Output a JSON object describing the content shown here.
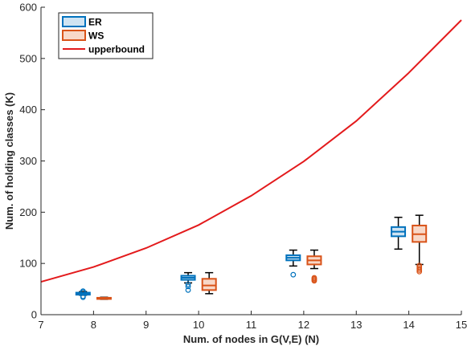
{
  "chart_data": {
    "type": "boxplot+line",
    "xlabel": "Num. of nodes in G(V,E) (N)",
    "ylabel": "Num. of holding classes (K)",
    "xlim": [
      7,
      15
    ],
    "ylim": [
      0,
      600
    ],
    "xticks": [
      7,
      8,
      9,
      10,
      11,
      12,
      13,
      14,
      15
    ],
    "yticks": [
      0,
      100,
      200,
      300,
      400,
      500,
      600
    ],
    "grid": false,
    "legend": {
      "placement": "top-left",
      "entries": [
        {
          "label": "ER",
          "color": "#0072BD",
          "fill": "#cfe3f2",
          "kind": "box"
        },
        {
          "label": "WS",
          "color": "#D95319",
          "fill": "#f8d8c8",
          "kind": "box"
        },
        {
          "label": "upperbound",
          "color": "#e31a1c",
          "kind": "line"
        }
      ]
    },
    "box_series": [
      {
        "name": "ER",
        "color": "#0072BD",
        "fill": "#cfe3f2",
        "boxes": [
          {
            "x": 7.8,
            "q1": 39,
            "median": 41,
            "q3": 43,
            "whislo": 38,
            "whishi": 45,
            "outliers": [
              34,
              36,
              44,
              46
            ]
          },
          {
            "x": 9.8,
            "q1": 68,
            "median": 72,
            "q3": 76,
            "whislo": 62,
            "whishi": 82,
            "outliers": [
              48,
              55,
              59
            ]
          },
          {
            "x": 11.8,
            "q1": 106,
            "median": 111,
            "q3": 116,
            "whislo": 95,
            "whishi": 126,
            "outliers": [
              78
            ]
          },
          {
            "x": 13.8,
            "q1": 153,
            "median": 162,
            "q3": 171,
            "whislo": 128,
            "whishi": 190,
            "outliers": []
          }
        ]
      },
      {
        "name": "WS",
        "color": "#D95319",
        "fill": "#f8d8c8",
        "boxes": [
          {
            "x": 8.2,
            "q1": 31,
            "median": 32,
            "q3": 33,
            "whislo": 30,
            "whishi": 34,
            "outliers": []
          },
          {
            "x": 10.2,
            "q1": 48,
            "median": 57,
            "q3": 70,
            "whislo": 41,
            "whishi": 82,
            "outliers": []
          },
          {
            "x": 12.2,
            "q1": 98,
            "median": 106,
            "q3": 114,
            "whislo": 90,
            "whishi": 126,
            "outliers": [
              66,
              68,
              70,
              72
            ]
          },
          {
            "x": 14.2,
            "q1": 142,
            "median": 157,
            "q3": 174,
            "whislo": 98,
            "whishi": 194,
            "outliers": [
              84,
              87,
              90,
              93,
              96
            ]
          }
        ]
      }
    ],
    "line_series": [
      {
        "name": "upperbound",
        "color": "#e31a1c",
        "x": [
          7,
          8,
          9,
          10,
          11,
          12,
          13,
          14,
          15
        ],
        "y": [
          64,
          93,
          130,
          175,
          232,
          299,
          378,
          472,
          575
        ]
      }
    ]
  }
}
